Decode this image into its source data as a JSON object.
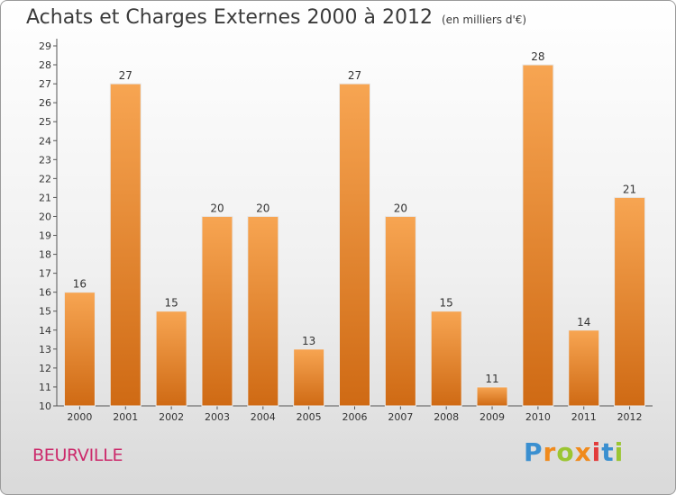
{
  "chart_data": {
    "type": "bar",
    "title": "Achats et Charges Externes 2000 à 2012",
    "unit_label": "(en milliers d'€)",
    "categories": [
      "2000",
      "2001",
      "2002",
      "2003",
      "2004",
      "2005",
      "2006",
      "2007",
      "2008",
      "2009",
      "2010",
      "2011",
      "2012"
    ],
    "values": [
      16,
      27,
      15,
      20,
      20,
      13,
      27,
      20,
      15,
      11,
      28,
      14,
      21
    ],
    "ylim": [
      10,
      29
    ],
    "yticks": [
      10,
      11,
      12,
      13,
      14,
      15,
      16,
      17,
      18,
      19,
      20,
      21,
      22,
      23,
      24,
      25,
      26,
      27,
      28,
      29
    ],
    "grid": false,
    "bar_color": "#f09c44"
  },
  "location": "BEURVILLE",
  "brand": {
    "letters": [
      "P",
      "r",
      "o",
      "x",
      "i",
      "t",
      "i"
    ],
    "colors": [
      "#3a8fd0",
      "#f08a1c",
      "#9bc531",
      "#f08a1c",
      "#e23b3b",
      "#3a8fd0",
      "#9bc531"
    ]
  }
}
